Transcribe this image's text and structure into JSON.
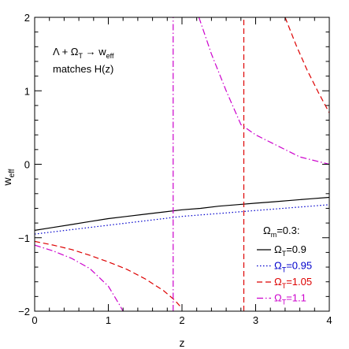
{
  "chart_data": {
    "type": "line",
    "xlabel": "z",
    "ylabel_base": "w",
    "ylabel_sub": "eff",
    "xlim": [
      0,
      4
    ],
    "ylim": [
      -2,
      2
    ],
    "x_ticks": [
      0,
      1,
      2,
      3,
      4
    ],
    "y_ticks": [
      -2,
      -1,
      0,
      1,
      2
    ],
    "annotation": {
      "line1": {
        "a": "Λ + Ω",
        "a_sub": "T",
        "b": " → w",
        "b_sub": "eff"
      },
      "line2": "matches H(z)"
    },
    "legend": {
      "position": "bottom-right",
      "title_base": "Ω",
      "title_sub": "m",
      "title_rest": "=0.3:",
      "entries": [
        {
          "base": "Ω",
          "sub": "T",
          "rest": "=0.9",
          "color": "#000000",
          "dash": ""
        },
        {
          "base": "Ω",
          "sub": "T",
          "rest": "=0.95",
          "color": "#0000cc",
          "dash": "1.5,2.5"
        },
        {
          "base": "Ω",
          "sub": "T",
          "rest": "=1.05",
          "color": "#dd0000",
          "dash": "7,4"
        },
        {
          "base": "Ω",
          "sub": "T",
          "rest": "=1.1",
          "color": "#cc00cc",
          "dash": "8,3,1.5,3"
        }
      ]
    },
    "series": [
      {
        "color": "#000000",
        "dash": "",
        "segments": [
          [
            [
              0,
              -0.9
            ],
            [
              0.25,
              -0.86
            ],
            [
              0.5,
              -0.82
            ],
            [
              0.75,
              -0.78
            ],
            [
              1,
              -0.74
            ],
            [
              1.25,
              -0.71
            ],
            [
              1.5,
              -0.68
            ],
            [
              1.75,
              -0.65
            ],
            [
              2,
              -0.62
            ],
            [
              2.25,
              -0.6
            ],
            [
              2.5,
              -0.57
            ],
            [
              2.75,
              -0.55
            ],
            [
              3,
              -0.53
            ],
            [
              3.25,
              -0.51
            ],
            [
              3.5,
              -0.49
            ],
            [
              3.75,
              -0.47
            ],
            [
              4,
              -0.45
            ]
          ]
        ]
      },
      {
        "color": "#0000cc",
        "dash": "1.5,2.5",
        "segments": [
          [
            [
              0,
              -0.95
            ],
            [
              0.25,
              -0.92
            ],
            [
              0.5,
              -0.89
            ],
            [
              0.75,
              -0.86
            ],
            [
              1,
              -0.83
            ],
            [
              1.25,
              -0.8
            ],
            [
              1.5,
              -0.77
            ],
            [
              1.75,
              -0.74
            ],
            [
              2,
              -0.71
            ],
            [
              2.25,
              -0.69
            ],
            [
              2.5,
              -0.67
            ],
            [
              2.75,
              -0.65
            ],
            [
              3,
              -0.63
            ],
            [
              3.25,
              -0.61
            ],
            [
              3.5,
              -0.59
            ],
            [
              3.75,
              -0.57
            ],
            [
              4,
              -0.55
            ]
          ]
        ]
      },
      {
        "color": "#dd0000",
        "dash": "7,4",
        "segments": [
          [
            [
              0,
              -1.05
            ],
            [
              0.25,
              -1.1
            ],
            [
              0.5,
              -1.16
            ],
            [
              0.75,
              -1.24
            ],
            [
              1,
              -1.33
            ],
            [
              1.25,
              -1.43
            ],
            [
              1.5,
              -1.56
            ],
            [
              1.75,
              -1.72
            ],
            [
              1.9,
              -1.85
            ],
            [
              2.0,
              -1.96
            ]
          ],
          [
            [
              2.84,
              -2
            ],
            [
              2.84,
              2
            ]
          ],
          [
            [
              3.4,
              2.0
            ],
            [
              3.55,
              1.62
            ],
            [
              3.7,
              1.28
            ],
            [
              3.85,
              0.98
            ],
            [
              4.0,
              0.7
            ]
          ]
        ]
      },
      {
        "color": "#cc00cc",
        "dash": "8,3,1.5,3",
        "segments": [
          [
            [
              0,
              -1.1
            ],
            [
              0.25,
              -1.18
            ],
            [
              0.5,
              -1.28
            ],
            [
              0.75,
              -1.42
            ],
            [
              1.0,
              -1.66
            ],
            [
              1.15,
              -1.91
            ],
            [
              1.2,
              -2.0
            ]
          ],
          [
            [
              1.88,
              -2
            ],
            [
              1.88,
              2
            ]
          ],
          [
            [
              2.23,
              2.0
            ],
            [
              2.4,
              1.5
            ],
            [
              2.6,
              1.0
            ],
            [
              2.8,
              0.54
            ],
            [
              3.0,
              0.4
            ],
            [
              3.3,
              0.25
            ],
            [
              3.6,
              0.1
            ],
            [
              4.0,
              0.0
            ]
          ]
        ]
      }
    ]
  }
}
